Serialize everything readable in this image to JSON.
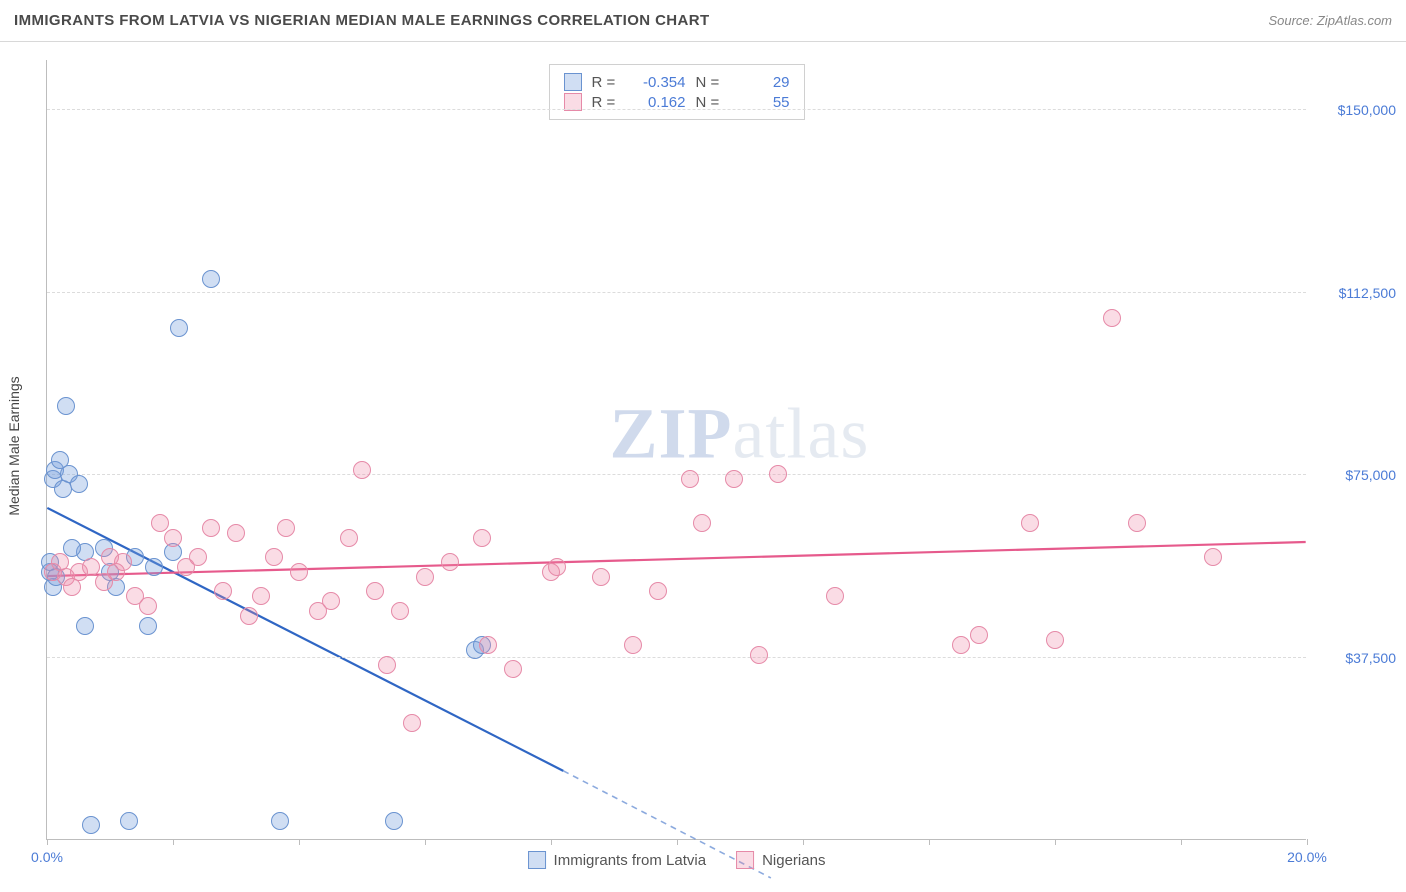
{
  "title": "IMMIGRANTS FROM LATVIA VS NIGERIAN MEDIAN MALE EARNINGS CORRELATION CHART",
  "source_label": "Source: ZipAtlas.com",
  "watermark": {
    "prefix": "ZIP",
    "suffix": "atlas"
  },
  "y_axis_label": "Median Male Earnings",
  "chart": {
    "type": "scatter",
    "background_color": "#ffffff",
    "grid_color": "#dcdcdc",
    "axis_color": "#bdbdbd",
    "tick_label_color": "#4b7bd6",
    "xlim": [
      0,
      20
    ],
    "ylim": [
      0,
      160000
    ],
    "y_gridlines": [
      37500,
      75000,
      112500,
      150000
    ],
    "y_gridline_labels": [
      "$37,500",
      "$75,000",
      "$112,500",
      "$150,000"
    ],
    "x_tick_positions": [
      0,
      2,
      4,
      6,
      8,
      10,
      12,
      14,
      16,
      18,
      20
    ],
    "x_tick_labels": {
      "0": "0.0%",
      "20": "20.0%"
    },
    "point_radius": 9,
    "point_border_width": 1.2,
    "series": [
      {
        "key": "latvia",
        "name": "Immigrants from Latvia",
        "fill_color": "rgba(120,160,220,0.35)",
        "border_color": "#6a93d0",
        "line_color": "#2f66c4",
        "r": "-0.354",
        "n": "29",
        "trend": {
          "x1": 0,
          "y1": 68000,
          "x2": 8.2,
          "y2": 14000,
          "dashed_extension_x2": 11.5,
          "dashed_extension_y2": -8000
        },
        "points": [
          [
            0.05,
            55000
          ],
          [
            0.05,
            57000
          ],
          [
            0.1,
            52000
          ],
          [
            0.1,
            74000
          ],
          [
            0.12,
            76000
          ],
          [
            0.2,
            78000
          ],
          [
            0.25,
            72000
          ],
          [
            0.3,
            89000
          ],
          [
            0.35,
            75000
          ],
          [
            0.5,
            73000
          ],
          [
            0.6,
            59000
          ],
          [
            0.6,
            44000
          ],
          [
            0.7,
            3000
          ],
          [
            0.9,
            60000
          ],
          [
            1.0,
            55000
          ],
          [
            1.3,
            4000
          ],
          [
            1.4,
            58000
          ],
          [
            1.6,
            44000
          ],
          [
            1.7,
            56000
          ],
          [
            2.0,
            59000
          ],
          [
            2.1,
            105000
          ],
          [
            2.6,
            115000
          ],
          [
            3.7,
            4000
          ],
          [
            5.5,
            4000
          ],
          [
            6.8,
            39000
          ],
          [
            6.9,
            40000
          ],
          [
            0.15,
            54000
          ],
          [
            0.4,
            60000
          ],
          [
            1.1,
            52000
          ]
        ]
      },
      {
        "key": "nigerians",
        "name": "Nigerians",
        "fill_color": "rgba(240,140,170,0.30)",
        "border_color": "#e68aa8",
        "line_color": "#e65a8c",
        "r": "0.162",
        "n": "55",
        "trend": {
          "x1": 0,
          "y1": 54000,
          "x2": 20,
          "y2": 61000
        },
        "points": [
          [
            0.1,
            55000
          ],
          [
            0.2,
            57000
          ],
          [
            0.3,
            54000
          ],
          [
            0.5,
            55000
          ],
          [
            0.7,
            56000
          ],
          [
            0.9,
            53000
          ],
          [
            1.0,
            58000
          ],
          [
            1.2,
            57000
          ],
          [
            1.4,
            50000
          ],
          [
            1.6,
            48000
          ],
          [
            1.8,
            65000
          ],
          [
            2.0,
            62000
          ],
          [
            2.2,
            56000
          ],
          [
            2.4,
            58000
          ],
          [
            2.6,
            64000
          ],
          [
            2.8,
            51000
          ],
          [
            3.0,
            63000
          ],
          [
            3.2,
            46000
          ],
          [
            3.4,
            50000
          ],
          [
            3.6,
            58000
          ],
          [
            3.8,
            64000
          ],
          [
            4.0,
            55000
          ],
          [
            4.3,
            47000
          ],
          [
            4.5,
            49000
          ],
          [
            4.8,
            62000
          ],
          [
            5.0,
            76000
          ],
          [
            5.2,
            51000
          ],
          [
            5.4,
            36000
          ],
          [
            5.6,
            47000
          ],
          [
            5.8,
            24000
          ],
          [
            6.0,
            54000
          ],
          [
            6.4,
            57000
          ],
          [
            6.9,
            62000
          ],
          [
            7.0,
            40000
          ],
          [
            7.4,
            35000
          ],
          [
            8.0,
            55000
          ],
          [
            8.1,
            56000
          ],
          [
            8.8,
            54000
          ],
          [
            9.3,
            40000
          ],
          [
            9.7,
            51000
          ],
          [
            10.2,
            74000
          ],
          [
            10.4,
            65000
          ],
          [
            10.9,
            74000
          ],
          [
            11.3,
            38000
          ],
          [
            11.6,
            75000
          ],
          [
            12.5,
            50000
          ],
          [
            14.5,
            40000
          ],
          [
            14.8,
            42000
          ],
          [
            15.6,
            65000
          ],
          [
            16.0,
            41000
          ],
          [
            16.9,
            107000
          ],
          [
            17.3,
            65000
          ],
          [
            18.5,
            58000
          ],
          [
            0.4,
            52000
          ],
          [
            1.1,
            55000
          ]
        ]
      }
    ]
  },
  "legend_bottom": [
    {
      "series": "latvia",
      "label": "Immigrants from Latvia"
    },
    {
      "series": "nigerians",
      "label": "Nigerians"
    }
  ]
}
